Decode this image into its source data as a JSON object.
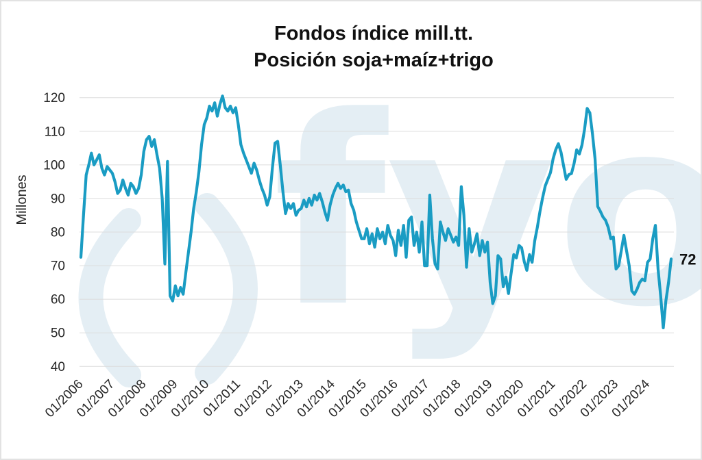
{
  "watermark": {
    "text": "fyo"
  },
  "chart_data": {
    "type": "line",
    "title_line1": "Fondos índice mill.tt.",
    "title_line2": "Posición soja+maíz+trigo",
    "ylabel": "Millones",
    "ylim": [
      40,
      120
    ],
    "y_ticks": [
      40,
      50,
      60,
      70,
      80,
      90,
      100,
      110,
      120
    ],
    "x_tick_labels": [
      "01/2006",
      "01/2007",
      "01/2008",
      "01/2009",
      "01/2010",
      "01/2011",
      "01/2012",
      "01/2013",
      "01/2014",
      "01/2015",
      "01/2016",
      "01/2017",
      "01/2018",
      "01/2019",
      "01/2020",
      "01/2021",
      "01/2022",
      "01/2023",
      "01/2024"
    ],
    "x_start": "01/2006",
    "frequency": "monthly",
    "points_per_year": 12,
    "grid": "horizontal",
    "legend": "none",
    "end_label": "72",
    "line_color": "#1a9cc3",
    "gridline_color": "#dcdcdc",
    "watermark_color": "#e4eef4",
    "values": [
      72.5,
      85,
      97,
      100,
      103.5,
      100,
      101.5,
      103,
      99,
      97,
      99.5,
      98.5,
      97.5,
      95,
      91.5,
      92.5,
      95.5,
      93,
      91,
      94.5,
      93.5,
      91.5,
      93,
      97,
      104,
      107.5,
      108.5,
      105.5,
      107.5,
      103,
      99,
      90,
      70.5,
      101,
      61,
      59.5,
      64,
      61,
      63.5,
      61.5,
      68,
      74,
      80,
      87,
      92,
      98,
      106,
      112,
      114,
      117.5,
      116,
      118.5,
      114.5,
      118,
      120.5,
      117,
      116,
      117.5,
      115.5,
      117,
      112,
      106,
      103.5,
      101.5,
      99.5,
      97.5,
      100.5,
      98.5,
      95.5,
      93,
      91,
      88,
      90.5,
      99,
      106.5,
      107,
      100,
      92,
      85.5,
      88.5,
      87,
      88.5,
      85,
      86.5,
      87,
      89.5,
      87.5,
      90,
      88,
      91,
      89.5,
      91.5,
      89,
      86,
      83.5,
      88,
      91,
      93,
      94.5,
      93,
      94,
      92,
      92.5,
      88.5,
      86.5,
      83,
      80.5,
      78,
      78,
      81,
      76.5,
      79.5,
      75.5,
      81,
      78,
      80,
      76.5,
      82,
      79,
      77.5,
      73,
      80.5,
      76,
      82,
      72.5,
      83.5,
      84.5,
      76,
      80,
      74,
      83,
      70,
      70,
      91,
      78,
      70.5,
      69,
      83,
      80,
      77.5,
      81,
      79,
      77,
      78.5,
      76,
      93.5,
      85,
      69.5,
      81,
      74,
      76.5,
      79.5,
      73,
      77.5,
      74,
      77,
      65,
      58.7,
      61,
      73,
      72,
      63.7,
      66.6,
      61.7,
      67.8,
      73.3,
      72.3,
      76,
      75.3,
      71.2,
      68.6,
      73.3,
      71,
      77.4,
      81.4,
      86.2,
      90.2,
      93.7,
      95.7,
      97.7,
      101.8,
      104.5,
      106.3,
      103.8,
      99.7,
      95.7,
      97.1,
      97.4,
      100.4,
      104.5,
      103.2,
      105.9,
      110.6,
      116.8,
      115.5,
      109.3,
      101.8,
      87.6,
      86.2,
      84.5,
      83.5,
      81.4,
      78,
      78.5,
      69,
      70,
      74.5,
      79,
      74.5,
      70,
      62.5,
      61.5,
      63,
      65,
      66,
      65.5,
      71,
      72,
      78,
      82,
      69,
      61,
      51.5,
      59.5,
      65,
      72
    ]
  }
}
